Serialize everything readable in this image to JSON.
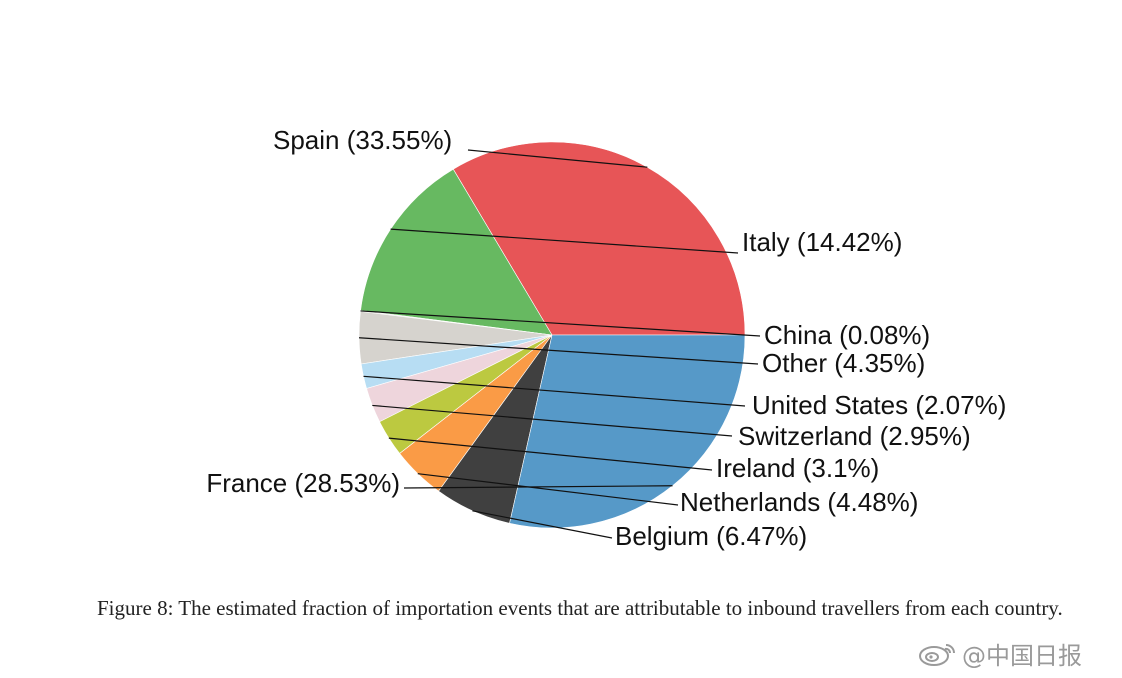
{
  "chart_data": {
    "type": "pie",
    "slices": [
      {
        "name": "Spain",
        "label": "Spain (33.55%)",
        "value": 33.55,
        "color": "#E75557"
      },
      {
        "name": "Italy",
        "label": "Italy (14.42%)",
        "value": 14.42,
        "color": "#67B961"
      },
      {
        "name": "China",
        "label": "China (0.08%)",
        "value": 0.08,
        "color": "#C8C2B5"
      },
      {
        "name": "Other",
        "label": "Other (4.35%)",
        "value": 4.35,
        "color": "#D6D3CE"
      },
      {
        "name": "United States",
        "label": "United States (2.07%)",
        "value": 2.07,
        "color": "#B7DDF3"
      },
      {
        "name": "Switzerland",
        "label": "Switzerland (2.95%)",
        "value": 2.95,
        "color": "#EED5DC"
      },
      {
        "name": "Ireland",
        "label": "Ireland (3.1%)",
        "value": 3.1,
        "color": "#BCC940"
      },
      {
        "name": "Netherlands",
        "label": "Netherlands (4.48%)",
        "value": 4.48,
        "color": "#FA9B46"
      },
      {
        "name": "Belgium",
        "label": "Belgium (6.47%)",
        "value": 6.47,
        "color": "#404040"
      },
      {
        "name": "France",
        "label": "France (28.53%)",
        "value": 28.53,
        "color": "#5699C8"
      }
    ]
  },
  "caption": "Figure 8: The estimated fraction of importation events that are attributable to inbound travellers from each country.",
  "watermark": {
    "text": "@中国日报",
    "icon": "weibo-icon"
  }
}
